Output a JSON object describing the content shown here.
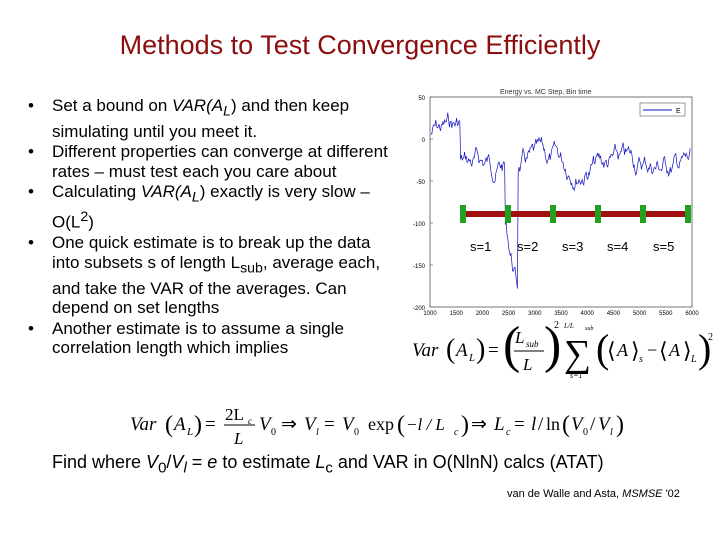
{
  "slide": {
    "title": "Methods to Test Convergence Efficiently",
    "bullets": [
      {
        "pre": "Set a bound on ",
        "var": "VAR",
        "mid": "(A",
        "sub": "L",
        "post": ") and then keep simulating until you meet it."
      },
      {
        "text": "Different properties can converge at different rates – must test each you care about"
      },
      {
        "pre": "Calculating ",
        "var": "VAR",
        "mid": "(A",
        "sub": "L",
        "post": ") exactly is very slow – O(L",
        "sup": "2",
        "end": ")"
      },
      {
        "pre": "One quick estimate is to break up the data into subsets s of length L",
        "sub": "sub",
        "post": ", average each, and take the VAR of the averages.  Can depend on set lengths"
      },
      {
        "text": "Another estimate is to assume a single correlation length which implies"
      }
    ],
    "find_line": {
      "p1": "Find where ",
      "v0": "V",
      "sub0": "0",
      "slash": "/",
      "vl": "V",
      "subl": "l",
      "p2": " = ",
      "e": "e",
      "p3": " to estimate ",
      "lc": "L",
      "subc": "c",
      "p4": " and VAR in O(NlnN) calcs (ATAT)"
    },
    "citation": {
      "authors": "van de Walle and Asta, ",
      "journal": "MSMSE",
      "year": " '02"
    }
  },
  "figure": {
    "header": "Energy vs. MC Step, Bin time",
    "legend_tag": "E",
    "y_ticks": [
      "50",
      "0",
      "-50",
      "-100",
      "-150",
      "-200"
    ],
    "x_ticks": [
      "1000",
      "1500",
      "2000",
      "2500",
      "3000",
      "3500",
      "4000",
      "4500",
      "5000",
      "5500",
      "6000"
    ],
    "segment_labels": [
      "s=1",
      "s=2",
      "s=3",
      "s=4",
      "s=5"
    ],
    "colors": {
      "trace": "#1010c0",
      "bar": "#a01010",
      "marker": "#22a022"
    }
  },
  "equations": {
    "var_lhs": "Var",
    "A": "A",
    "L": "L",
    "sub": "sub",
    "ratio": "L/L",
    "s": "s",
    "s1": "s=1",
    "two": "2",
    "var2_lhs": "Var",
    "twoLc": "2L",
    "c": "c",
    "V": "V",
    "zero": "0",
    "l": "l",
    "exp": "exp",
    "minus_l": "−l / L",
    "ln": "ln"
  }
}
